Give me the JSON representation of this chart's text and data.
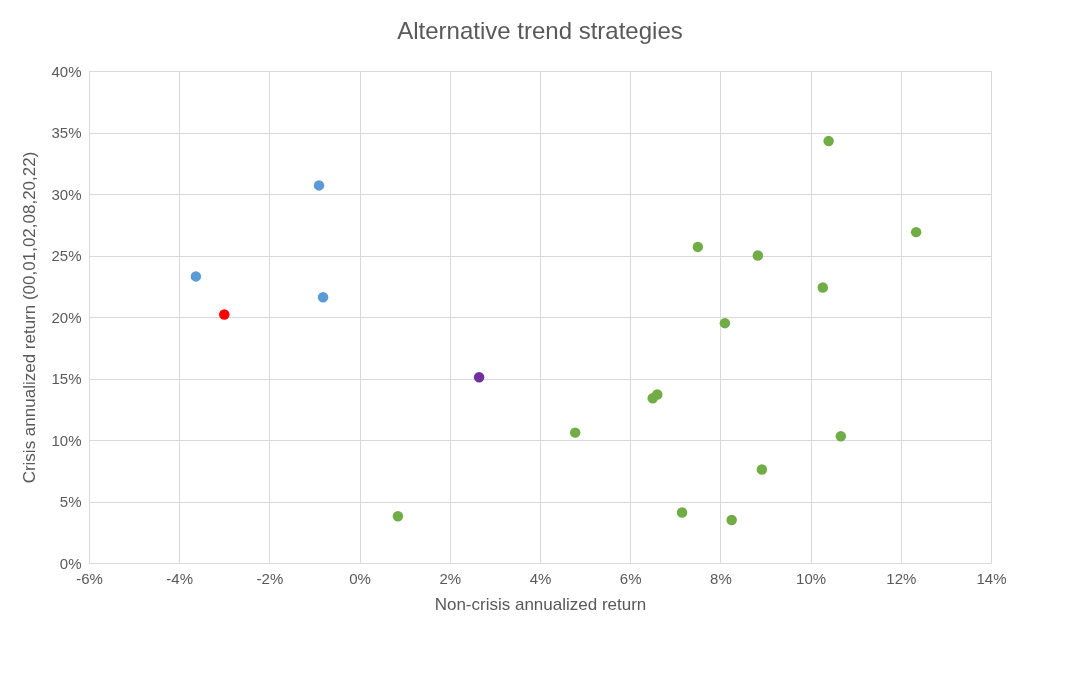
{
  "chart_data": {
    "type": "scatter",
    "title": "Alternative trend strategies",
    "xlabel": "Non-crisis annualized return",
    "ylabel": "Crisis annualized return (00,01,02,08,20,22)",
    "xlim": [
      -6,
      14
    ],
    "ylim": [
      0,
      40
    ],
    "xticks": [
      {
        "value": -6,
        "label": "-6%"
      },
      {
        "value": -4,
        "label": "-4%"
      },
      {
        "value": -2,
        "label": "-2%"
      },
      {
        "value": 0,
        "label": "0%"
      },
      {
        "value": 2,
        "label": "2%"
      },
      {
        "value": 4,
        "label": "4%"
      },
      {
        "value": 6,
        "label": "6%"
      },
      {
        "value": 8,
        "label": "8%"
      },
      {
        "value": 10,
        "label": "10%"
      },
      {
        "value": 12,
        "label": "12%"
      },
      {
        "value": 14,
        "label": "14%"
      }
    ],
    "yticks": [
      {
        "value": 0,
        "label": "0%"
      },
      {
        "value": 5,
        "label": "5%"
      },
      {
        "value": 10,
        "label": "10%"
      },
      {
        "value": 15,
        "label": "15%"
      },
      {
        "value": 20,
        "label": "20%"
      },
      {
        "value": 25,
        "label": "25%"
      },
      {
        "value": 30,
        "label": "30%"
      },
      {
        "value": 35,
        "label": "35%"
      },
      {
        "value": 40,
        "label": "40%"
      }
    ],
    "grid": true,
    "marker": "circle",
    "legend": false,
    "series": [
      {
        "color": "#5b9bd5",
        "x": [
          -0.9,
          -3.63,
          -0.81
        ],
        "values": [
          30.7,
          23.3,
          21.6
        ]
      },
      {
        "color": "#ff0000",
        "x": [
          -3.0
        ],
        "values": [
          20.2
        ]
      },
      {
        "color": "#7030a0",
        "x": [
          2.65
        ],
        "values": [
          15.1
        ]
      },
      {
        "color": "#70ad47",
        "x": [
          0.85,
          4.78,
          6.5,
          6.6,
          7.15,
          7.5,
          8.1,
          8.25,
          8.83,
          8.92,
          10.27,
          10.4,
          10.67,
          12.34
        ],
        "values": [
          3.8,
          10.6,
          13.4,
          13.7,
          4.1,
          25.7,
          19.5,
          3.5,
          25.0,
          7.6,
          22.4,
          34.3,
          10.3,
          26.9
        ]
      }
    ]
  }
}
